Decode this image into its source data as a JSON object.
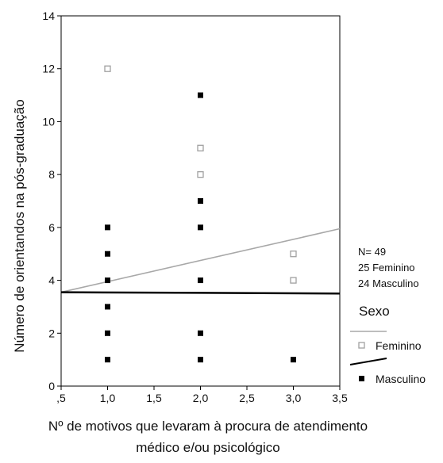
{
  "chart_data": {
    "type": "scatter",
    "ylabel": "Número de orientandos na pós-graduação",
    "xlabel_lines": [
      "Nº de motivos que levaram à procura de atendimento",
      "médico e/ou psicológico"
    ],
    "xlim": [
      0.5,
      3.5
    ],
    "ylim": [
      0,
      14
    ],
    "x_ticks": [
      ",5",
      "1,0",
      "1,5",
      "2,0",
      "2,5",
      "3,0",
      "3,5"
    ],
    "x_tick_values": [
      0.5,
      1.0,
      1.5,
      2.0,
      2.5,
      3.0,
      3.5
    ],
    "y_ticks": [
      "0",
      "2",
      "4",
      "6",
      "8",
      "10",
      "12",
      "14"
    ],
    "y_tick_values": [
      0,
      2,
      4,
      6,
      8,
      10,
      12,
      14
    ],
    "grid": false,
    "series": [
      {
        "name": "Feminino",
        "marker": "hollow-square",
        "color": "#a0a0a0",
        "points": [
          [
            1.0,
            12
          ],
          [
            2.0,
            9
          ],
          [
            2.0,
            8
          ],
          [
            3.0,
            5
          ],
          [
            3.0,
            4
          ]
        ]
      },
      {
        "name": "Masculino",
        "marker": "filled-square",
        "color": "#000000",
        "points": [
          [
            1.0,
            6
          ],
          [
            1.0,
            5
          ],
          [
            1.0,
            4
          ],
          [
            1.0,
            3
          ],
          [
            1.0,
            2
          ],
          [
            1.0,
            1
          ],
          [
            2.0,
            11
          ],
          [
            2.0,
            7
          ],
          [
            2.0,
            6
          ],
          [
            2.0,
            4
          ],
          [
            2.0,
            2
          ],
          [
            2.0,
            1
          ],
          [
            3.0,
            1
          ]
        ]
      }
    ],
    "fit_lines": [
      {
        "series": "Feminino",
        "color": "#a8a8a8",
        "x": [
          0.5,
          3.5
        ],
        "y": [
          3.55,
          5.95
        ]
      },
      {
        "series": "Masculino",
        "color": "#000000",
        "x": [
          0.5,
          3.5
        ],
        "y": [
          3.55,
          3.5
        ]
      }
    ],
    "annotation_lines": [
      "N= 49",
      "25 Feminino",
      "24 Masculino"
    ],
    "legend": {
      "title": "Sexo",
      "placement": "right",
      "entries": [
        {
          "label": "Feminino",
          "marker": "hollow-square",
          "line_color": "#a8a8a8"
        },
        {
          "label": "Masculino",
          "marker": "filled-square",
          "line_color": "#000000"
        }
      ]
    }
  }
}
